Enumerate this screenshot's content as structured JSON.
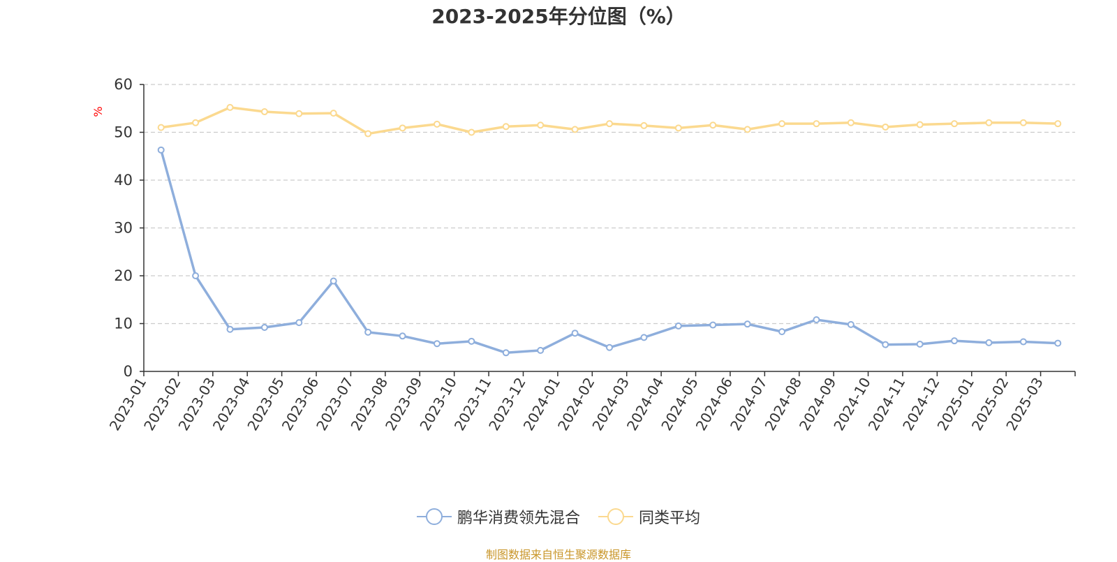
{
  "chart_data": {
    "type": "line",
    "title": "2023-2025年分位图（%）",
    "ylabel": "%",
    "xlabel": "",
    "ylim": [
      0,
      60
    ],
    "yticks": [
      0,
      10,
      20,
      30,
      40,
      50,
      60
    ],
    "grid": true,
    "legend_position": "bottom",
    "categories": [
      "2023-01",
      "2023-02",
      "2023-03",
      "2023-04",
      "2023-05",
      "2023-06",
      "2023-07",
      "2023-08",
      "2023-09",
      "2023-10",
      "2023-11",
      "2023-12",
      "2024-01",
      "2024-02",
      "2024-03",
      "2024-04",
      "2024-05",
      "2024-06",
      "2024-07",
      "2024-08",
      "2024-09",
      "2024-10",
      "2024-11",
      "2024-12",
      "2025-01",
      "2025-02",
      "2025-03"
    ],
    "series": [
      {
        "name": "鹏华消费领先混合",
        "color": "#8eaedc",
        "values": [
          46.3,
          20.0,
          8.8,
          9.2,
          10.2,
          18.9,
          8.2,
          7.4,
          5.8,
          6.3,
          3.9,
          4.4,
          8.0,
          5.0,
          7.1,
          9.5,
          9.7,
          9.9,
          8.3,
          10.8,
          9.8,
          5.6,
          5.7,
          6.4,
          6.0,
          6.2,
          5.9
        ]
      },
      {
        "name": "同类平均",
        "color": "#fbd98f",
        "values": [
          51.0,
          52.0,
          55.2,
          54.3,
          53.9,
          54.0,
          49.7,
          50.9,
          51.7,
          50.0,
          51.2,
          51.5,
          50.6,
          51.8,
          51.4,
          50.9,
          51.5,
          50.6,
          51.8,
          51.8,
          52.0,
          51.1,
          51.6,
          51.8,
          52.0,
          52.0,
          51.8
        ]
      }
    ]
  },
  "footer": {
    "source": "制图数据来自恒生聚源数据库"
  },
  "colors": {
    "axis": "#333333",
    "grid": "#cccccc",
    "ylabel": "#ff0000",
    "source": "#c9962a"
  }
}
